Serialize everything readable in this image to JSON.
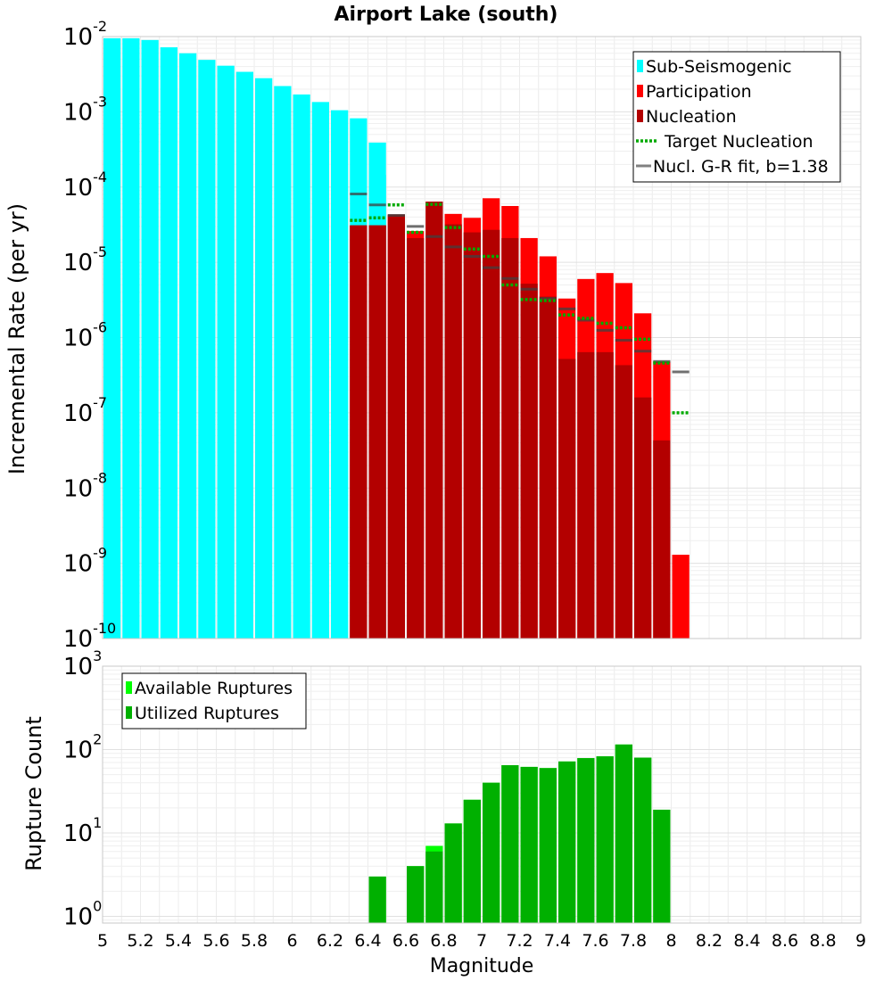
{
  "chart_data": [
    {
      "type": "bar",
      "title": "Airport Lake (south)",
      "xlabel": "",
      "ylabel": "Incremental Rate (per yr)",
      "xlim": [
        5,
        9
      ],
      "ylim_log10": [
        -10,
        -2
      ],
      "y_tick_exponents": [
        -2,
        -3,
        -4,
        -5,
        -6,
        -7,
        -8,
        -9,
        -10
      ],
      "bar_width": 0.1,
      "colors": {
        "sub_seismogenic": "#00ffff",
        "participation": "#ff0000",
        "nucleation": "#b30000",
        "target": "#00aa00",
        "gr_fit": "#808080"
      },
      "legend": [
        {
          "label": "Sub-Seismogenic",
          "style": "bar",
          "color": "#00ffff"
        },
        {
          "label": "Participation",
          "style": "bar",
          "color": "#ff0000"
        },
        {
          "label": "Nucleation",
          "style": "bar",
          "color": "#b30000"
        },
        {
          "label": "Target Nucleation",
          "style": "dotted",
          "color": "#00aa00"
        },
        {
          "label": "Nucl. G-R fit, b=1.38",
          "style": "line",
          "color": "#808080"
        }
      ],
      "legend_position": "top-right",
      "sub_seismogenic": {
        "x": [
          5.05,
          5.15,
          5.25,
          5.35,
          5.45,
          5.55,
          5.65,
          5.75,
          5.85,
          5.95,
          6.05,
          6.15,
          6.25,
          6.35,
          6.45
        ],
        "values": [
          0.0095,
          0.0095,
          0.009,
          0.0072,
          0.006,
          0.0049,
          0.0041,
          0.0034,
          0.0028,
          0.0022,
          0.0017,
          0.00135,
          0.00105,
          0.00082,
          0.00039
        ]
      },
      "sub_seismogenic_extra": {
        "x": [
          6.45
        ],
        "values": [
          0.000145
        ]
      },
      "participation": {
        "x": [
          6.35,
          6.45,
          6.55,
          6.65,
          6.75,
          6.85,
          6.95,
          7.05,
          7.15,
          7.25,
          7.35,
          7.45,
          7.55,
          7.65,
          7.75,
          7.85,
          7.95,
          8.05
        ],
        "values": [
          3.1e-05,
          3.1e-05,
          4.3e-05,
          2.6e-05,
          6.4e-05,
          4.4e-05,
          3.9e-05,
          7.1e-05,
          5.6e-05,
          2.1e-05,
          1.2e-05,
          3.3e-06,
          6e-06,
          7.2e-06,
          5.3e-06,
          2.1e-06,
          4.8e-07,
          1.3e-09
        ]
      },
      "nucleation": {
        "x": [
          6.35,
          6.45,
          6.55,
          6.65,
          6.75,
          6.85,
          6.95,
          7.05,
          7.15,
          7.25,
          7.35,
          7.45,
          7.55,
          7.65,
          7.75,
          7.85,
          7.95
        ],
        "values": [
          3.1e-05,
          3.1e-05,
          4.3e-05,
          2.1e-05,
          6.4e-05,
          3.2e-05,
          2.5e-05,
          2.7e-05,
          2.1e-05,
          5.2e-06,
          3.5e-06,
          5.2e-07,
          6.4e-07,
          6.4e-07,
          4.3e-07,
          1.6e-07,
          4.3e-08
        ]
      },
      "target_nucleation": {
        "x": [
          6.35,
          6.45,
          6.55,
          6.65,
          6.75,
          6.85,
          6.95,
          7.05,
          7.15,
          7.25,
          7.35,
          7.45,
          7.55,
          7.65,
          7.75,
          7.85,
          7.95,
          8.05
        ],
        "values": [
          3.6e-05,
          3.9e-05,
          5.8e-05,
          2.5e-05,
          5.9e-05,
          2.9e-05,
          1.5e-05,
          1.2e-05,
          5e-06,
          3.2e-06,
          3.1e-06,
          2e-06,
          1.8e-06,
          1.55e-06,
          1.35e-06,
          9.5e-07,
          4.6e-07,
          1e-07
        ]
      },
      "gr_fit": {
        "x": [
          6.35,
          6.45,
          6.55,
          6.65,
          6.75,
          6.85,
          6.95,
          7.05,
          7.15,
          7.25,
          7.35,
          7.45,
          7.55,
          7.65,
          7.75,
          7.85,
          7.95,
          8.05
        ],
        "values": [
          8.1e-05,
          5.8e-05,
          4.2e-05,
          3e-05,
          2.2e-05,
          1.6e-05,
          1.2e-05,
          8.5e-06,
          6.1e-06,
          4.4e-06,
          3.3e-06,
          2.4e-06,
          1.7e-06,
          1.25e-06,
          9.2e-07,
          6.6e-07,
          4.8e-07,
          3.5e-07
        ]
      }
    },
    {
      "type": "bar",
      "title": "",
      "xlabel": "Magnitude",
      "ylabel": "Rupture Count",
      "xlim": [
        5,
        9
      ],
      "x_ticks": [
        "5",
        "5.2",
        "5.4",
        "5.6",
        "5.8",
        "6",
        "6.2",
        "6.4",
        "6.6",
        "6.8",
        "7",
        "7.2",
        "7.4",
        "7.6",
        "7.8",
        "8",
        "8.2",
        "8.4",
        "8.6",
        "8.8",
        "9"
      ],
      "ylim_log10": [
        -0.08,
        3
      ],
      "y_tick_exponents": [
        3,
        2,
        1,
        0
      ],
      "bar_width": 0.1,
      "legend": [
        {
          "label": "Available Ruptures",
          "style": "bar",
          "color": "#00ff00"
        },
        {
          "label": "Utilized Ruptures",
          "style": "bar",
          "color": "#00b000"
        }
      ],
      "legend_position": "top-left",
      "available": {
        "x": [
          6.45,
          6.65,
          6.75,
          6.85,
          6.95,
          7.05,
          7.15,
          7.25,
          7.35,
          7.45,
          7.55,
          7.65,
          7.75,
          7.85,
          7.95
        ],
        "values": [
          3,
          4,
          7,
          13,
          25,
          40,
          65,
          62,
          60,
          72,
          79,
          83,
          115,
          80,
          19
        ]
      },
      "utilized": {
        "x": [
          6.45,
          6.65,
          6.75,
          6.85,
          6.95,
          7.05,
          7.15,
          7.25,
          7.35,
          7.45,
          7.55,
          7.65,
          7.75,
          7.85,
          7.95
        ],
        "values": [
          3,
          4,
          6,
          13,
          25,
          40,
          65,
          62,
          60,
          72,
          79,
          83,
          115,
          80,
          19
        ]
      }
    }
  ]
}
